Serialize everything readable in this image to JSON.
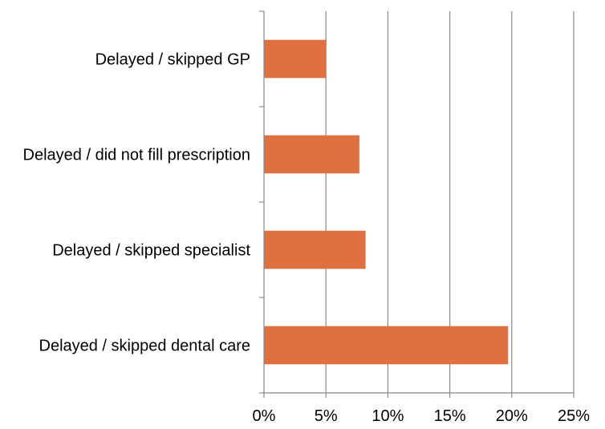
{
  "chart_data": {
    "type": "bar",
    "orientation": "horizontal",
    "categories": [
      "Delayed / skipped GP",
      "Delayed / did not fill prescription",
      "Delayed / skipped specialist",
      "Delayed / skipped dental care"
    ],
    "values": [
      5.0,
      7.7,
      8.2,
      19.7
    ],
    "xlim": [
      0,
      25
    ],
    "x_ticks": [
      "0%",
      "5%",
      "10%",
      "15%",
      "20%",
      "25%"
    ],
    "title": "",
    "xlabel": "",
    "ylabel": "",
    "grid": "vertical",
    "legend": "none",
    "colors": {
      "bar": "#E07040",
      "grid": "#888888",
      "axis": "#888888"
    }
  }
}
